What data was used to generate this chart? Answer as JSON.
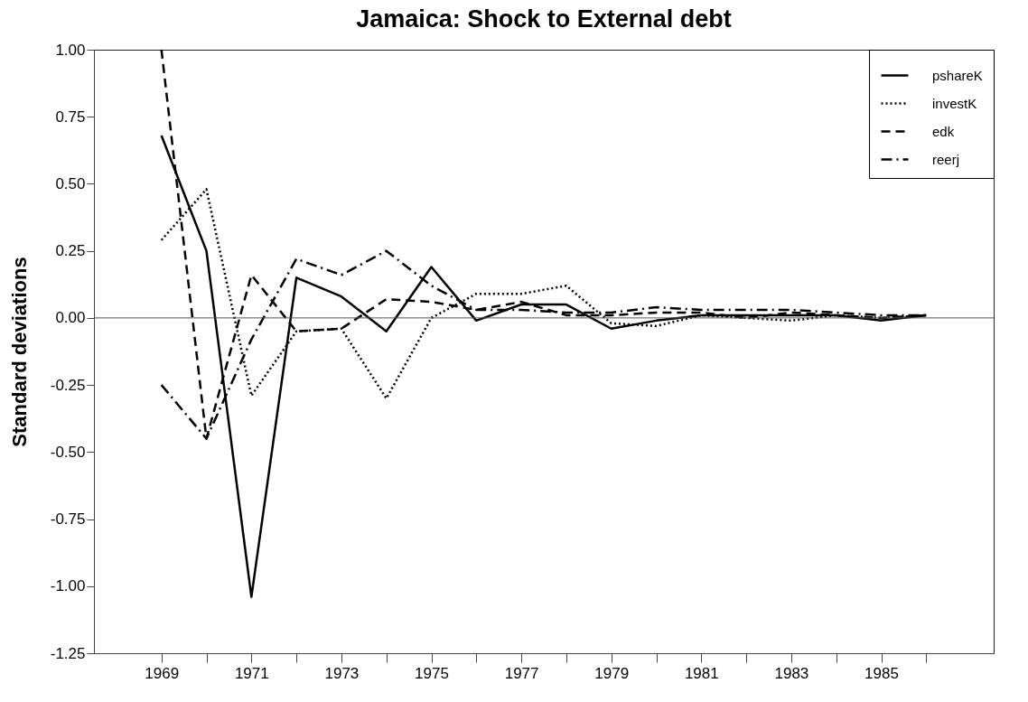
{
  "chart_data": {
    "type": "line",
    "title": "Jamaica: Shock to External debt",
    "ylabel": "Standard deviations",
    "x": [
      1969,
      1970,
      1971,
      1972,
      1973,
      1974,
      1975,
      1976,
      1977,
      1978,
      1979,
      1980,
      1981,
      1982,
      1983,
      1984,
      1985,
      1986
    ],
    "series": [
      {
        "name": "pshareK",
        "color": "#000000",
        "line_style": "solid",
        "values": [
          0.68,
          0.25,
          -1.04,
          0.15,
          0.08,
          -0.05,
          0.19,
          -0.01,
          0.05,
          0.05,
          -0.04,
          -0.01,
          0.01,
          0.01,
          0.01,
          0.01,
          -0.01,
          0.01
        ]
      },
      {
        "name": "investK",
        "color": "#000000",
        "line_style": "dotted",
        "values": [
          0.29,
          0.48,
          -0.29,
          -0.05,
          -0.04,
          -0.3,
          0.0,
          0.09,
          0.09,
          0.12,
          -0.02,
          -0.03,
          0.01,
          0.0,
          -0.01,
          0.01,
          0.0,
          0.01
        ]
      },
      {
        "name": "edk",
        "color": "#000000",
        "line_style": "dashed",
        "values": [
          1.0,
          -0.45,
          0.16,
          -0.05,
          -0.04,
          0.07,
          0.06,
          0.03,
          0.06,
          0.01,
          0.01,
          0.02,
          0.02,
          0.0,
          0.02,
          0.01,
          0.0,
          0.01
        ]
      },
      {
        "name": "reerj",
        "color": "#000000",
        "line_style": "dashdot",
        "values": [
          -0.25,
          -0.45,
          -0.08,
          0.22,
          0.16,
          0.25,
          0.12,
          0.03,
          0.03,
          0.02,
          0.02,
          0.04,
          0.03,
          0.03,
          0.03,
          0.02,
          0.01,
          0.01
        ]
      }
    ],
    "xlim": [
      1967.5,
      1987.5
    ],
    "xticks": [
      1969,
      {
        "value": 1970,
        "label": null
      },
      1971,
      {
        "value": 1972,
        "label": null
      },
      1973,
      {
        "value": 1974,
        "label": null
      },
      1975,
      {
        "value": 1976,
        "label": null
      },
      1977,
      {
        "value": 1978,
        "label": null
      },
      1979,
      {
        "value": 1980,
        "label": null
      },
      1981,
      {
        "value": 1982,
        "label": null
      },
      1983,
      {
        "value": 1984,
        "label": null
      },
      1985,
      {
        "value": 1986,
        "label": null
      }
    ],
    "ylim": [
      -1.25,
      1.0
    ],
    "yticks": [
      {
        "value": -1.25,
        "label": "-1.25"
      },
      {
        "value": -1,
        "label": "-1.00"
      },
      {
        "value": -0.75,
        "label": "-0.75"
      },
      {
        "value": -0.5,
        "label": "-0.50"
      },
      {
        "value": -0.25,
        "label": "-0.25"
      },
      {
        "value": 0,
        "label": "0.00"
      },
      {
        "value": 0.25,
        "label": "0.25"
      },
      {
        "value": 0.5,
        "label": "0.50"
      },
      {
        "value": 0.75,
        "label": "0.75"
      },
      {
        "value": 1,
        "label": "1.00"
      }
    ],
    "ref_lines": [
      {
        "axis": "y",
        "value": 0,
        "color": "#555555"
      }
    ],
    "legend": "top right",
    "grid": false
  }
}
